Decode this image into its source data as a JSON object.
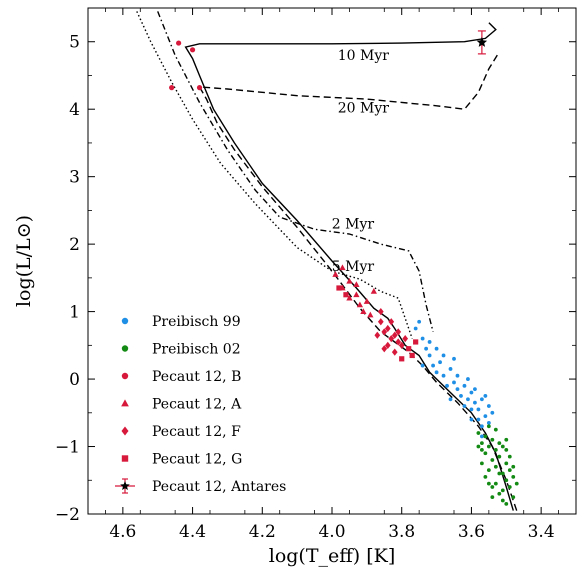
{
  "chart_data": {
    "type": "scatter",
    "title": "",
    "xlabel": "log(T_eff) [K]",
    "ylabel": "log(L/L⊙)",
    "xlim": [
      4.7,
      3.3
    ],
    "ylim": [
      -2,
      5.5
    ],
    "x_ticks": [
      "4.6",
      "4.4",
      "4.2",
      "4.0",
      "3.8",
      "3.6",
      "3.4"
    ],
    "y_ticks": [
      "−2",
      "−1",
      "0",
      "1",
      "2",
      "3",
      "4",
      "5"
    ],
    "legend_position": "lower-left",
    "legend": [
      {
        "label": "Preibisch 99",
        "marker": "circle",
        "color": "#1f8fe6"
      },
      {
        "label": "Preibisch 02",
        "marker": "circle",
        "color": "#138a13"
      },
      {
        "label": "Pecaut 12, B",
        "marker": "circle",
        "color": "#d7193c"
      },
      {
        "label": "Pecaut 12, A",
        "marker": "triangle",
        "color": "#d7193c"
      },
      {
        "label": "Pecaut 12, F",
        "marker": "diamond",
        "color": "#d7193c"
      },
      {
        "label": "Pecaut 12, G",
        "marker": "square",
        "color": "#d7193c"
      },
      {
        "label": "Pecaut 12, Antares",
        "marker": "star-errorbar",
        "color": "#d7193c"
      }
    ],
    "isochrones": [
      {
        "label": "10 Myr",
        "style": "solid",
        "label_pos": [
          3.91,
          4.73
        ],
        "points": [
          [
            3.48,
            -1.95
          ],
          [
            3.5,
            -1.6
          ],
          [
            3.53,
            -1.1
          ],
          [
            3.56,
            -0.8
          ],
          [
            3.6,
            -0.5
          ],
          [
            3.66,
            -0.2
          ],
          [
            3.72,
            0.1
          ],
          [
            3.75,
            0.35
          ],
          [
            3.79,
            0.5
          ],
          [
            3.82,
            0.75
          ],
          [
            3.84,
            0.9
          ],
          [
            3.88,
            1.05
          ],
          [
            3.93,
            1.35
          ],
          [
            4.0,
            1.75
          ],
          [
            4.1,
            2.35
          ],
          [
            4.2,
            2.9
          ],
          [
            4.28,
            3.5
          ],
          [
            4.34,
            4.0
          ],
          [
            4.38,
            4.5
          ],
          [
            4.4,
            4.75
          ],
          [
            4.42,
            4.92
          ],
          [
            4.38,
            4.97
          ],
          [
            4.2,
            4.97
          ],
          [
            4.0,
            4.97
          ],
          [
            3.8,
            4.98
          ],
          [
            3.62,
            5.0
          ],
          [
            3.56,
            5.05
          ],
          [
            3.53,
            5.18
          ],
          [
            3.55,
            5.28
          ]
        ]
      },
      {
        "label": "20 Myr",
        "style": "dashed",
        "label_pos": [
          3.91,
          3.95
        ],
        "points": [
          [
            3.47,
            -1.95
          ],
          [
            3.5,
            -1.5
          ],
          [
            3.54,
            -1.0
          ],
          [
            3.58,
            -0.7
          ],
          [
            3.64,
            -0.35
          ],
          [
            3.7,
            -0.05
          ],
          [
            3.74,
            0.2
          ],
          [
            3.78,
            0.4
          ],
          [
            3.82,
            0.55
          ],
          [
            3.86,
            0.7
          ],
          [
            3.92,
            1.05
          ],
          [
            4.0,
            1.6
          ],
          [
            4.1,
            2.25
          ],
          [
            4.2,
            2.85
          ],
          [
            4.28,
            3.4
          ],
          [
            4.33,
            3.8
          ],
          [
            4.36,
            4.15
          ],
          [
            4.38,
            4.33
          ],
          [
            4.3,
            4.3
          ],
          [
            4.1,
            4.2
          ],
          [
            3.9,
            4.15
          ],
          [
            3.7,
            4.05
          ],
          [
            3.62,
            4.0
          ],
          [
            3.58,
            4.25
          ],
          [
            3.55,
            4.6
          ],
          [
            3.52,
            4.85
          ]
        ]
      },
      {
        "label": "2 Myr",
        "style": "dash-dot",
        "label_pos": [
          3.94,
          2.23
        ],
        "points": [
          [
            4.5,
            5.45
          ],
          [
            4.45,
            4.8
          ],
          [
            4.38,
            4.1
          ],
          [
            4.3,
            3.4
          ],
          [
            4.22,
            2.8
          ],
          [
            4.15,
            2.4
          ],
          [
            4.05,
            2.22
          ],
          [
            3.95,
            2.15
          ],
          [
            3.86,
            2.0
          ],
          [
            3.78,
            1.9
          ],
          [
            3.75,
            1.6
          ],
          [
            3.73,
            1.1
          ],
          [
            3.71,
            0.7
          ]
        ]
      },
      {
        "label": "5 Myr",
        "style": "dotted",
        "label_pos": [
          3.94,
          1.6
        ],
        "points": [
          [
            4.56,
            5.45
          ],
          [
            4.52,
            5.0
          ],
          [
            4.46,
            4.4
          ],
          [
            4.4,
            3.85
          ],
          [
            4.32,
            3.2
          ],
          [
            4.22,
            2.6
          ],
          [
            4.1,
            1.95
          ],
          [
            4.0,
            1.6
          ],
          [
            3.92,
            1.48
          ],
          [
            3.86,
            1.3
          ],
          [
            3.81,
            1.2
          ],
          [
            3.79,
            0.9
          ],
          [
            3.77,
            0.6
          ]
        ]
      }
    ],
    "series": [
      {
        "name": "Preibisch 99",
        "marker": "circle",
        "color": "#1f8fe6",
        "points": [
          [
            3.76,
            0.75
          ],
          [
            3.75,
            0.85
          ],
          [
            3.74,
            0.6
          ],
          [
            3.73,
            0.45
          ],
          [
            3.72,
            0.35
          ],
          [
            3.71,
            0.2
          ],
          [
            3.7,
            0.1
          ],
          [
            3.69,
            0.25
          ],
          [
            3.68,
            0.05
          ],
          [
            3.67,
            -0.1
          ],
          [
            3.66,
            0.15
          ],
          [
            3.65,
            -0.05
          ],
          [
            3.64,
            -0.15
          ],
          [
            3.63,
            -0.25
          ],
          [
            3.62,
            -0.1
          ],
          [
            3.61,
            -0.3
          ],
          [
            3.6,
            -0.2
          ],
          [
            3.59,
            -0.35
          ],
          [
            3.58,
            -0.45
          ],
          [
            3.57,
            -0.3
          ],
          [
            3.56,
            -0.55
          ],
          [
            3.55,
            -0.4
          ],
          [
            3.6,
            -0.45
          ],
          [
            3.58,
            -0.6
          ],
          [
            3.57,
            -0.7
          ],
          [
            3.59,
            -0.15
          ],
          [
            3.62,
            -0.4
          ],
          [
            3.65,
            0.3
          ],
          [
            3.68,
            0.35
          ],
          [
            3.7,
            0.45
          ],
          [
            3.72,
            0.55
          ],
          [
            3.74,
            0.2
          ],
          [
            3.66,
            -0.3
          ],
          [
            3.64,
            0.05
          ],
          [
            3.61,
            0.0
          ],
          [
            3.56,
            -0.25
          ],
          [
            3.55,
            -0.65
          ],
          [
            3.54,
            -0.5
          ],
          [
            3.57,
            -0.85
          ],
          [
            3.6,
            -0.6
          ]
        ]
      },
      {
        "name": "Preibisch 02",
        "marker": "circle",
        "color": "#138a13",
        "points": [
          [
            3.58,
            -0.8
          ],
          [
            3.57,
            -0.95
          ],
          [
            3.56,
            -1.1
          ],
          [
            3.55,
            -1.0
          ],
          [
            3.54,
            -1.2
          ],
          [
            3.53,
            -1.3
          ],
          [
            3.52,
            -1.15
          ],
          [
            3.51,
            -1.4
          ],
          [
            3.5,
            -1.5
          ],
          [
            3.49,
            -1.6
          ],
          [
            3.48,
            -1.75
          ],
          [
            3.5,
            -1.85
          ],
          [
            3.52,
            -1.7
          ],
          [
            3.53,
            -1.55
          ],
          [
            3.54,
            -0.9
          ],
          [
            3.55,
            -1.35
          ],
          [
            3.56,
            -0.85
          ],
          [
            3.57,
            -1.25
          ],
          [
            3.51,
            -1.0
          ],
          [
            3.5,
            -1.25
          ],
          [
            3.49,
            -1.35
          ],
          [
            3.48,
            -1.45
          ],
          [
            3.52,
            -0.95
          ],
          [
            3.53,
            -0.75
          ],
          [
            3.55,
            -0.7
          ],
          [
            3.56,
            -1.45
          ],
          [
            3.54,
            -1.6
          ],
          [
            3.51,
            -1.65
          ],
          [
            3.5,
            -1.05
          ],
          [
            3.49,
            -1.15
          ],
          [
            3.53,
            -1.05
          ],
          [
            3.52,
            -1.4
          ],
          [
            3.55,
            -1.55
          ],
          [
            3.57,
            -1.05
          ],
          [
            3.58,
            -1.0
          ],
          [
            3.54,
            -1.75
          ],
          [
            3.51,
            -1.8
          ],
          [
            3.48,
            -1.3
          ],
          [
            3.47,
            -1.55
          ],
          [
            3.5,
            -0.9
          ]
        ]
      },
      {
        "name": "Pecaut 12, B",
        "marker": "circle",
        "color": "#d7193c",
        "points": [
          [
            4.44,
            4.98
          ],
          [
            4.4,
            4.88
          ],
          [
            4.38,
            4.32
          ],
          [
            4.46,
            4.32
          ]
        ]
      },
      {
        "name": "Pecaut 12, A",
        "marker": "triangle",
        "color": "#d7193c",
        "points": [
          [
            3.99,
            1.55
          ],
          [
            3.97,
            1.35
          ],
          [
            3.95,
            1.45
          ],
          [
            3.93,
            1.25
          ],
          [
            3.92,
            1.1
          ],
          [
            3.91,
            1.0
          ],
          [
            3.9,
            1.15
          ],
          [
            3.89,
            0.95
          ],
          [
            3.97,
            1.65
          ],
          [
            3.95,
            1.2
          ],
          [
            3.93,
            1.4
          ],
          [
            3.88,
            1.3
          ]
        ]
      },
      {
        "name": "Pecaut 12, F",
        "marker": "diamond",
        "color": "#d7193c",
        "points": [
          [
            3.86,
            0.85
          ],
          [
            3.85,
            0.7
          ],
          [
            3.84,
            0.75
          ],
          [
            3.83,
            0.6
          ],
          [
            3.82,
            0.65
          ],
          [
            3.81,
            0.55
          ],
          [
            3.8,
            0.5
          ],
          [
            3.84,
            0.5
          ],
          [
            3.83,
            0.85
          ],
          [
            3.82,
            0.4
          ],
          [
            3.81,
            0.7
          ],
          [
            3.79,
            0.6
          ],
          [
            3.87,
            0.65
          ],
          [
            3.85,
            0.45
          ],
          [
            3.86,
            1.0
          ]
        ]
      },
      {
        "name": "Pecaut 12, G",
        "marker": "square",
        "color": "#d7193c",
        "points": [
          [
            3.98,
            1.35
          ],
          [
            3.96,
            1.25
          ],
          [
            3.78,
            0.45
          ],
          [
            3.77,
            0.35
          ],
          [
            3.8,
            0.3
          ],
          [
            3.76,
            0.55
          ]
        ]
      },
      {
        "name": "Pecaut 12, Antares",
        "marker": "star",
        "color": "#d7193c",
        "points": [
          [
            3.57,
            4.99
          ]
        ],
        "yerr": 0.17
      }
    ]
  }
}
